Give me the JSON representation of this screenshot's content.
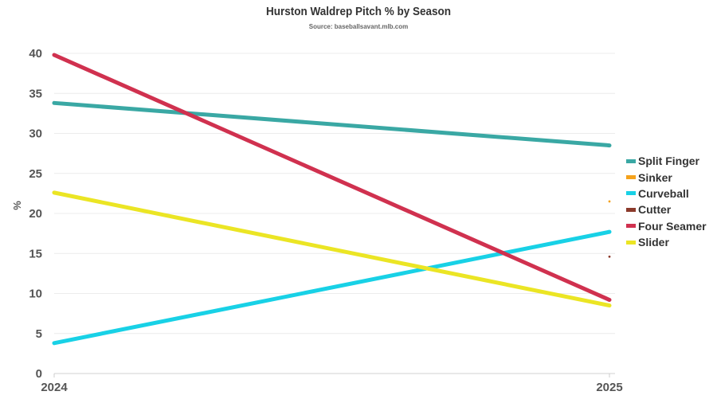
{
  "chart_data": {
    "type": "line",
    "title": "Hurston Waldrep Pitch % by Season",
    "subtitle": "Source: baseballsavant.mlb.com",
    "xlabel": "",
    "ylabel": "%",
    "x": [
      "2024",
      "2025"
    ],
    "ylim": [
      0,
      40
    ],
    "yticks": [
      0,
      5,
      10,
      15,
      20,
      25,
      30,
      35,
      40
    ],
    "grid": true,
    "legend_position": "right",
    "series": [
      {
        "name": "Split Finger",
        "color": "#3aa8a4",
        "values": [
          33.8,
          28.5
        ]
      },
      {
        "name": "Sinker",
        "color": "#f5a21b",
        "values": [
          null,
          21.5
        ]
      },
      {
        "name": "Curveball",
        "color": "#18d1e6",
        "values": [
          3.8,
          17.7
        ]
      },
      {
        "name": "Cutter",
        "color": "#8b3a2b",
        "values": [
          null,
          14.6
        ]
      },
      {
        "name": "Four Seamer",
        "color": "#d0314f",
        "values": [
          39.8,
          9.2
        ]
      },
      {
        "name": "Slider",
        "color": "#ebe524",
        "values": [
          22.6,
          8.5
        ]
      }
    ]
  }
}
